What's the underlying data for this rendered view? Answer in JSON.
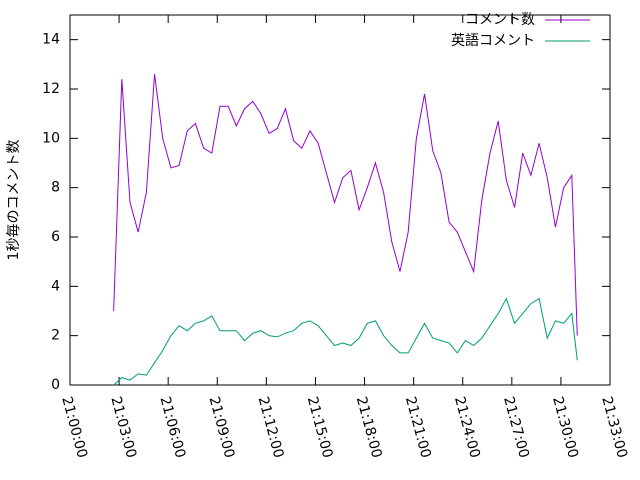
{
  "chart_data": {
    "type": "line",
    "ylabel": "1秒毎のコメント数",
    "x": [
      "21:02:40",
      "21:03:10",
      "21:03:40",
      "21:04:10",
      "21:04:40",
      "21:05:10",
      "21:05:40",
      "21:06:10",
      "21:06:40",
      "21:07:10",
      "21:07:40",
      "21:08:10",
      "21:08:40",
      "21:09:10",
      "21:09:40",
      "21:10:10",
      "21:10:40",
      "21:11:10",
      "21:11:40",
      "21:12:10",
      "21:12:40",
      "21:13:10",
      "21:13:40",
      "21:14:10",
      "21:14:40",
      "21:15:10",
      "21:15:40",
      "21:16:10",
      "21:16:40",
      "21:17:10",
      "21:17:40",
      "21:18:10",
      "21:18:40",
      "21:19:10",
      "21:19:40",
      "21:20:10",
      "21:20:40",
      "21:21:10",
      "21:21:40",
      "21:22:10",
      "21:22:40",
      "21:23:10",
      "21:23:40",
      "21:24:10",
      "21:24:40",
      "21:25:10",
      "21:25:40",
      "21:26:10",
      "21:26:40",
      "21:27:10",
      "21:27:40",
      "21:28:10",
      "21:28:40",
      "21:29:10",
      "21:29:40",
      "21:30:10",
      "21:30:40",
      "21:31:00"
    ],
    "series": [
      {
        "name": "コメント数",
        "color": "#9400d3",
        "values": [
          3.0,
          12.4,
          7.4,
          6.2,
          7.8,
          12.6,
          10.0,
          8.8,
          8.9,
          10.3,
          10.6,
          9.6,
          9.4,
          11.3,
          11.3,
          10.5,
          11.2,
          11.5,
          11.0,
          10.2,
          10.4,
          11.2,
          9.9,
          9.6,
          10.3,
          9.8,
          8.6,
          7.4,
          8.4,
          8.7,
          7.1,
          8.0,
          9.0,
          7.8,
          5.8,
          4.6,
          6.2,
          10.0,
          11.8,
          9.5,
          8.6,
          6.6,
          6.2,
          5.4,
          4.6,
          7.5,
          9.4,
          10.7,
          8.3,
          7.2,
          9.4,
          8.5,
          9.8,
          8.4,
          6.4,
          8.0,
          8.5,
          2.0
        ]
      },
      {
        "name": "英語コメント",
        "color": "#009e73",
        "values": [
          0.0,
          0.3,
          0.2,
          0.45,
          0.4,
          0.9,
          1.4,
          2.0,
          2.4,
          2.2,
          2.5,
          2.6,
          2.8,
          2.2,
          2.2,
          2.2,
          1.8,
          2.1,
          2.2,
          2.0,
          1.95,
          2.1,
          2.2,
          2.5,
          2.6,
          2.4,
          2.0,
          1.6,
          1.7,
          1.6,
          1.9,
          2.5,
          2.6,
          2.0,
          1.6,
          1.3,
          1.3,
          1.9,
          2.5,
          1.9,
          1.8,
          1.7,
          1.3,
          1.8,
          1.6,
          1.9,
          2.4,
          2.9,
          3.5,
          2.5,
          2.9,
          3.3,
          3.5,
          1.9,
          2.6,
          2.5,
          2.9,
          1.0
        ]
      }
    ],
    "xlim": [
      "21:00:00",
      "21:33:00"
    ],
    "xticks": [
      "21:00:00",
      "21:03:00",
      "21:06:00",
      "21:09:00",
      "21:12:00",
      "21:15:00",
      "21:18:00",
      "21:21:00",
      "21:24:00",
      "21:27:00",
      "21:30:00",
      "21:33:00"
    ],
    "ylim": [
      0,
      15
    ],
    "yticks": [
      0,
      2,
      4,
      6,
      8,
      10,
      12,
      14
    ],
    "legend": "top-right"
  }
}
